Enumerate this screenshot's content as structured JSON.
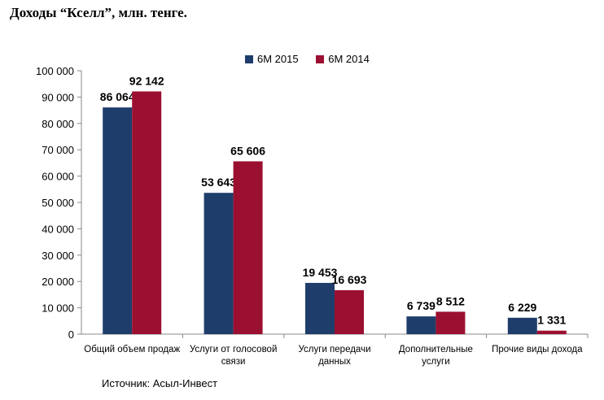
{
  "title": "Доходы “Кселл”, млн. тенге.",
  "source": "Источник: Асыл-Инвест",
  "colors": {
    "series_2015": "#1f3d6b",
    "series_2014": "#9b1030"
  },
  "chart_data": {
    "type": "bar",
    "categories": [
      [
        "Общий объем продаж"
      ],
      [
        "Услуги от голосовой",
        "связи"
      ],
      [
        "Услуги передачи",
        "данных"
      ],
      [
        "Дополнительные",
        "услуги"
      ],
      [
        "Прочие виды дохода"
      ]
    ],
    "series": [
      {
        "name": "6М 2015",
        "values": [
          86064,
          53643,
          19453,
          6739,
          6229
        ],
        "labels": [
          "86 064",
          "53 643",
          "19 453",
          "6 739",
          "6 229"
        ]
      },
      {
        "name": "6М 2014",
        "values": [
          92142,
          65606,
          16693,
          8512,
          1331
        ],
        "labels": [
          "92 142",
          "65 606",
          "16 693",
          "8 512",
          "1 331"
        ]
      }
    ],
    "ylim": [
      0,
      100000
    ],
    "yticks": [
      0,
      10000,
      20000,
      30000,
      40000,
      50000,
      60000,
      70000,
      80000,
      90000,
      100000
    ],
    "ytick_labels": [
      "0",
      "10 000",
      "20 000",
      "30 000",
      "40 000",
      "50 000",
      "60 000",
      "70 000",
      "80 000",
      "90 000",
      "100 000"
    ],
    "legend_position": "top",
    "grid": false
  }
}
